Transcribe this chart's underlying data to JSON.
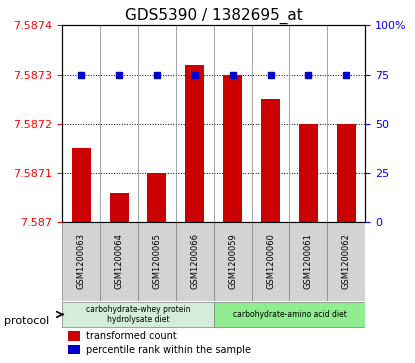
{
  "title": "GDS5390 / 1382695_at",
  "samples": [
    "GSM1200063",
    "GSM1200064",
    "GSM1200065",
    "GSM1200066",
    "GSM1200059",
    "GSM1200060",
    "GSM1200061",
    "GSM1200062"
  ],
  "red_values": [
    7.58715,
    7.58706,
    7.5871,
    7.58732,
    7.5873,
    7.58725,
    7.5872,
    7.5872
  ],
  "blue_values": [
    75,
    75,
    75,
    75,
    75,
    75,
    75,
    75
  ],
  "ylim_left": [
    7.587,
    7.5874
  ],
  "ylim_right": [
    0,
    100
  ],
  "yticks_left": [
    7.587,
    7.5871,
    7.5872,
    7.5873,
    7.5874
  ],
  "yticks_right": [
    0,
    25,
    50,
    75,
    100
  ],
  "ytick_labels_left": [
    "7.587",
    "7.5871",
    "7.5872",
    "7.5873",
    "7.5874"
  ],
  "ytick_labels_right": [
    "0",
    "25",
    "50",
    "75",
    "100%"
  ],
  "group1_indices": [
    0,
    1,
    2,
    3
  ],
  "group2_indices": [
    4,
    5,
    6,
    7
  ],
  "group1_label": "carbohydrate-whey protein\nhydrolysate diet",
  "group2_label": "carbohydrate-amino acid diet",
  "group1_color": "#d4edda",
  "group2_color": "#90ee90",
  "protocol_label": "protocol",
  "legend_red_label": "transformed count",
  "legend_blue_label": "percentile rank within the sample",
  "bar_color": "#cc0000",
  "dot_color": "#0000cc",
  "sample_bg_color": "#d3d3d3",
  "plot_bg_color": "#ffffff",
  "title_fontsize": 11,
  "tick_fontsize": 8,
  "label_fontsize": 8
}
